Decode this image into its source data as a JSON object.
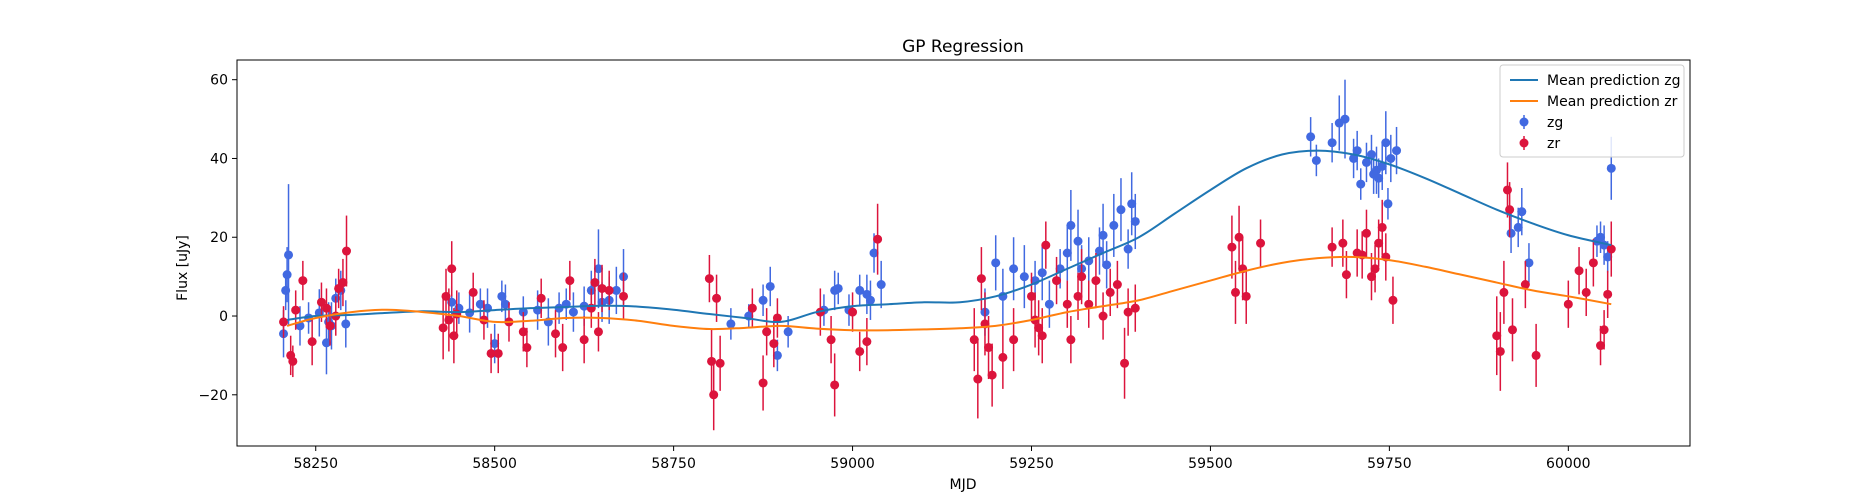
{
  "chart_data": {
    "type": "scatter",
    "title": "GP Regression",
    "xlabel": "MJD",
    "ylabel": "Flux [uJy]",
    "xlim": [
      58140,
      60170
    ],
    "ylim": [
      -33,
      65
    ],
    "xticks": [
      58250,
      58500,
      58750,
      59000,
      59250,
      59500,
      59750,
      60000
    ],
    "yticks": [
      -20,
      0,
      20,
      40,
      60
    ],
    "grid": false,
    "legend_position": "top-right",
    "colors": {
      "zg_points": "#4169e1",
      "zr_points": "#dc143c",
      "zg_line": "#1f77b4",
      "zr_line": "#ff7f0e"
    },
    "series": [
      {
        "name": "Mean prediction zg",
        "kind": "line",
        "x": [
          58210,
          58250,
          58300,
          58350,
          58400,
          58450,
          58500,
          58550,
          58600,
          58650,
          58700,
          58750,
          58800,
          58850,
          58900,
          58950,
          59000,
          59050,
          59100,
          59150,
          59200,
          59250,
          59300,
          59350,
          59400,
          59450,
          59500,
          59550,
          59600,
          59650,
          59700,
          59750,
          59800,
          59850,
          59900,
          59950,
          60000,
          60060
        ],
        "y": [
          -1.0,
          0.0,
          0.3,
          0.8,
          1.2,
          1.0,
          1.5,
          2.0,
          2.3,
          2.6,
          2.4,
          1.6,
          0.5,
          -0.5,
          -1.5,
          1.0,
          2.5,
          3.0,
          3.5,
          3.5,
          5.0,
          8.0,
          12.0,
          16.0,
          20.0,
          26.0,
          32.0,
          37.5,
          41.0,
          42.0,
          41.0,
          38.5,
          35.0,
          31.0,
          27.0,
          23.5,
          20.5,
          18.0
        ]
      },
      {
        "name": "Mean prediction zr",
        "kind": "line",
        "x": [
          58210,
          58250,
          58300,
          58350,
          58400,
          58450,
          58500,
          58550,
          58600,
          58650,
          58700,
          58750,
          58800,
          58850,
          58900,
          58950,
          59000,
          59050,
          59100,
          59150,
          59200,
          59250,
          59300,
          59350,
          59400,
          59450,
          59500,
          59550,
          59600,
          59650,
          59700,
          59750,
          59800,
          59850,
          59900,
          59950,
          60000,
          60060
        ],
        "y": [
          -2.5,
          -0.5,
          1.0,
          1.6,
          1.0,
          0.0,
          -1.5,
          -1.2,
          -0.5,
          -0.5,
          -1.2,
          -2.5,
          -3.3,
          -3.0,
          -2.5,
          -3.2,
          -3.6,
          -3.6,
          -3.4,
          -3.1,
          -2.5,
          -1.0,
          1.0,
          2.5,
          4.0,
          6.5,
          9.0,
          11.5,
          13.5,
          14.7,
          15.0,
          14.2,
          12.5,
          10.5,
          8.5,
          6.5,
          5.0,
          3.0
        ]
      },
      {
        "name": "zg",
        "kind": "errorbar",
        "points": [
          [
            58205,
            -4.5,
            6
          ],
          [
            58208,
            6.5,
            5
          ],
          [
            58210,
            10.5,
            7
          ],
          [
            58212,
            15.5,
            18
          ],
          [
            58228,
            -2.5,
            5
          ],
          [
            58240,
            -0.5,
            4
          ],
          [
            58255,
            0.8,
            6
          ],
          [
            58265,
            -6.8,
            8
          ],
          [
            58268,
            -1.5,
            5
          ],
          [
            58272,
            -2.5,
            6
          ],
          [
            58278,
            4.5,
            5
          ],
          [
            58285,
            6.5,
            5
          ],
          [
            58292,
            -2.0,
            6
          ],
          [
            58440,
            3.5,
            4
          ],
          [
            58450,
            2.0,
            4
          ],
          [
            58465,
            0.8,
            5
          ],
          [
            58480,
            3.0,
            4
          ],
          [
            58490,
            2.0,
            5
          ],
          [
            58500,
            -7.0,
            5
          ],
          [
            58510,
            5.0,
            4
          ],
          [
            58515,
            3.0,
            5
          ],
          [
            58540,
            1.0,
            4
          ],
          [
            58560,
            1.5,
            5
          ],
          [
            58575,
            -1.5,
            6
          ],
          [
            58590,
            2.0,
            4
          ],
          [
            58600,
            3.0,
            4
          ],
          [
            58610,
            1.0,
            5
          ],
          [
            58625,
            2.5,
            5
          ],
          [
            58635,
            6.5,
            5
          ],
          [
            58645,
            12.0,
            10
          ],
          [
            58650,
            3.5,
            5
          ],
          [
            58660,
            4.0,
            6
          ],
          [
            58670,
            6.5,
            6
          ],
          [
            58680,
            10.0,
            7
          ],
          [
            58830,
            -2.0,
            4
          ],
          [
            58855,
            0.0,
            3
          ],
          [
            58875,
            4.0,
            4
          ],
          [
            58885,
            7.5,
            5
          ],
          [
            58895,
            -10.0,
            4
          ],
          [
            58910,
            -4.0,
            4
          ],
          [
            58960,
            1.5,
            4
          ],
          [
            58975,
            6.5,
            5
          ],
          [
            58980,
            7.0,
            4
          ],
          [
            58995,
            1.5,
            4
          ],
          [
            59010,
            6.5,
            4
          ],
          [
            59020,
            5.5,
            5
          ],
          [
            59025,
            4.0,
            5
          ],
          [
            59030,
            16.0,
            5
          ],
          [
            59040,
            8.0,
            6
          ],
          [
            59185,
            1.0,
            6
          ],
          [
            59200,
            13.5,
            7
          ],
          [
            59210,
            5.0,
            7
          ],
          [
            59225,
            12.0,
            8
          ],
          [
            59240,
            10.0,
            8
          ],
          [
            59255,
            9.0,
            5
          ],
          [
            59265,
            11.0,
            7
          ],
          [
            59275,
            3.0,
            6
          ],
          [
            59290,
            12.0,
            5
          ],
          [
            59300,
            16.0,
            7
          ],
          [
            59305,
            23.0,
            9
          ],
          [
            59315,
            19.0,
            8
          ],
          [
            59320,
            12.0,
            6
          ],
          [
            59330,
            14.0,
            6
          ],
          [
            59345,
            16.5,
            6
          ],
          [
            59350,
            20.5,
            8
          ],
          [
            59355,
            13.0,
            6
          ],
          [
            59365,
            23.0,
            8
          ],
          [
            59375,
            27.0,
            8
          ],
          [
            59385,
            17.0,
            5
          ],
          [
            59390,
            28.5,
            8
          ],
          [
            59395,
            24.0,
            7
          ],
          [
            59640,
            45.5,
            5
          ],
          [
            59648,
            39.5,
            4
          ],
          [
            59670,
            44.0,
            5
          ],
          [
            59680,
            49.0,
            7
          ],
          [
            59688,
            50.0,
            10
          ],
          [
            59700,
            40.0,
            5
          ],
          [
            59705,
            42.0,
            5
          ],
          [
            59710,
            33.5,
            4
          ],
          [
            59718,
            39.0,
            5
          ],
          [
            59725,
            41.0,
            5
          ],
          [
            59728,
            36.0,
            5
          ],
          [
            59732,
            37.0,
            6
          ],
          [
            59735,
            35.0,
            5
          ],
          [
            59740,
            38.0,
            6
          ],
          [
            59745,
            44.0,
            8
          ],
          [
            59748,
            28.5,
            4
          ],
          [
            59752,
            40.0,
            6
          ],
          [
            59760,
            42.0,
            6
          ],
          [
            59920,
            21.0,
            5
          ],
          [
            59930,
            22.5,
            5
          ],
          [
            59935,
            26.5,
            6
          ],
          [
            59945,
            13.5,
            5
          ],
          [
            60040,
            19.0,
            4
          ],
          [
            60045,
            20.0,
            4
          ],
          [
            60050,
            18.0,
            5
          ],
          [
            60055,
            15.0,
            4
          ],
          [
            60060,
            37.5,
            8
          ]
        ]
      },
      {
        "name": "zr",
        "kind": "errorbar",
        "points": [
          [
            58205,
            -1.5,
            4
          ],
          [
            58215,
            -10.0,
            5
          ],
          [
            58218,
            -11.5,
            4
          ],
          [
            58222,
            1.5,
            5
          ],
          [
            58232,
            9.0,
            5
          ],
          [
            58245,
            -6.5,
            6
          ],
          [
            58258,
            3.5,
            5
          ],
          [
            58265,
            2.0,
            5
          ],
          [
            58270,
            -2.5,
            5
          ],
          [
            58278,
            0.0,
            5
          ],
          [
            58282,
            7.0,
            5
          ],
          [
            58288,
            8.5,
            6
          ],
          [
            58293,
            16.5,
            9
          ],
          [
            58428,
            -3.0,
            8
          ],
          [
            58432,
            5.0,
            7
          ],
          [
            58436,
            -1.0,
            8
          ],
          [
            58440,
            12.0,
            7
          ],
          [
            58443,
            -5.0,
            7
          ],
          [
            58447,
            0.5,
            6
          ],
          [
            58470,
            6.0,
            5
          ],
          [
            58485,
            -1.0,
            5
          ],
          [
            58495,
            -9.5,
            5
          ],
          [
            58505,
            -9.5,
            5
          ],
          [
            58520,
            -1.5,
            5
          ],
          [
            58540,
            -4.0,
            5
          ],
          [
            58545,
            -8.0,
            5
          ],
          [
            58565,
            4.5,
            5
          ],
          [
            58585,
            -4.5,
            6
          ],
          [
            58595,
            -8.0,
            6
          ],
          [
            58605,
            9.0,
            5
          ],
          [
            58625,
            -6.0,
            6
          ],
          [
            58635,
            2.0,
            5
          ],
          [
            58640,
            8.5,
            6
          ],
          [
            58645,
            -4.0,
            5
          ],
          [
            58650,
            7.0,
            6
          ],
          [
            58660,
            6.5,
            5
          ],
          [
            58680,
            5.0,
            6
          ],
          [
            58800,
            9.5,
            6
          ],
          [
            58803,
            -11.5,
            8
          ],
          [
            58806,
            -20.0,
            9
          ],
          [
            58810,
            4.5,
            6
          ],
          [
            58815,
            -12.0,
            7
          ],
          [
            58860,
            2.0,
            5
          ],
          [
            58875,
            -17.0,
            7
          ],
          [
            58880,
            -4.0,
            6
          ],
          [
            58890,
            -7.0,
            6
          ],
          [
            58895,
            -0.5,
            5
          ],
          [
            58955,
            1.0,
            6
          ],
          [
            58970,
            -6.0,
            6
          ],
          [
            58975,
            -17.5,
            8
          ],
          [
            59000,
            1.0,
            5
          ],
          [
            59010,
            -9.0,
            5
          ],
          [
            59020,
            -6.5,
            6
          ],
          [
            59035,
            19.5,
            9
          ],
          [
            59170,
            -6.0,
            8
          ],
          [
            59175,
            -16.0,
            10
          ],
          [
            59180,
            9.5,
            8
          ],
          [
            59185,
            -2.0,
            8
          ],
          [
            59190,
            -8.0,
            8
          ],
          [
            59195,
            -15.0,
            8
          ],
          [
            59210,
            -10.5,
            8
          ],
          [
            59225,
            -6.0,
            8
          ],
          [
            59250,
            5.0,
            6
          ],
          [
            59255,
            -1.0,
            7
          ],
          [
            59260,
            -3.0,
            7
          ],
          [
            59265,
            -5.0,
            7
          ],
          [
            59270,
            18.0,
            6
          ],
          [
            59285,
            9.0,
            6
          ],
          [
            59300,
            3.0,
            6
          ],
          [
            59305,
            -6.0,
            6
          ],
          [
            59315,
            5.0,
            6
          ],
          [
            59320,
            10.0,
            7
          ],
          [
            59330,
            3.0,
            6
          ],
          [
            59340,
            9.0,
            7
          ],
          [
            59350,
            0.0,
            6
          ],
          [
            59360,
            6.0,
            6
          ],
          [
            59370,
            8.0,
            6
          ],
          [
            59380,
            -12.0,
            9
          ],
          [
            59385,
            1.0,
            6
          ],
          [
            59395,
            2.0,
            6
          ],
          [
            59530,
            17.5,
            8
          ],
          [
            59535,
            6.0,
            8
          ],
          [
            59540,
            20.0,
            8
          ],
          [
            59545,
            12.0,
            8
          ],
          [
            59550,
            5.0,
            7
          ],
          [
            59570,
            18.5,
            6
          ],
          [
            59670,
            17.5,
            5
          ],
          [
            59685,
            18.5,
            6
          ],
          [
            59690,
            10.5,
            6
          ],
          [
            59705,
            16.0,
            6
          ],
          [
            59712,
            15.5,
            6
          ],
          [
            59718,
            21.0,
            6
          ],
          [
            59725,
            10.0,
            6
          ],
          [
            59730,
            12.0,
            6
          ],
          [
            59735,
            18.5,
            6
          ],
          [
            59740,
            22.5,
            7
          ],
          [
            59745,
            15.0,
            6
          ],
          [
            59755,
            4.0,
            6
          ],
          [
            59900,
            -5.0,
            10
          ],
          [
            59905,
            -9.0,
            10
          ],
          [
            59910,
            6.0,
            8
          ],
          [
            59915,
            32.0,
            7
          ],
          [
            59918,
            27.0,
            7
          ],
          [
            59922,
            -3.5,
            8
          ],
          [
            59940,
            8.0,
            6
          ],
          [
            59955,
            -10.0,
            8
          ],
          [
            60000,
            3.0,
            6
          ],
          [
            60015,
            11.5,
            6
          ],
          [
            60025,
            6.0,
            6
          ],
          [
            60035,
            13.5,
            6
          ],
          [
            60045,
            -7.5,
            5
          ],
          [
            60050,
            -3.5,
            5
          ],
          [
            60055,
            5.5,
            6
          ],
          [
            60060,
            17.0,
            7
          ]
        ]
      }
    ]
  }
}
